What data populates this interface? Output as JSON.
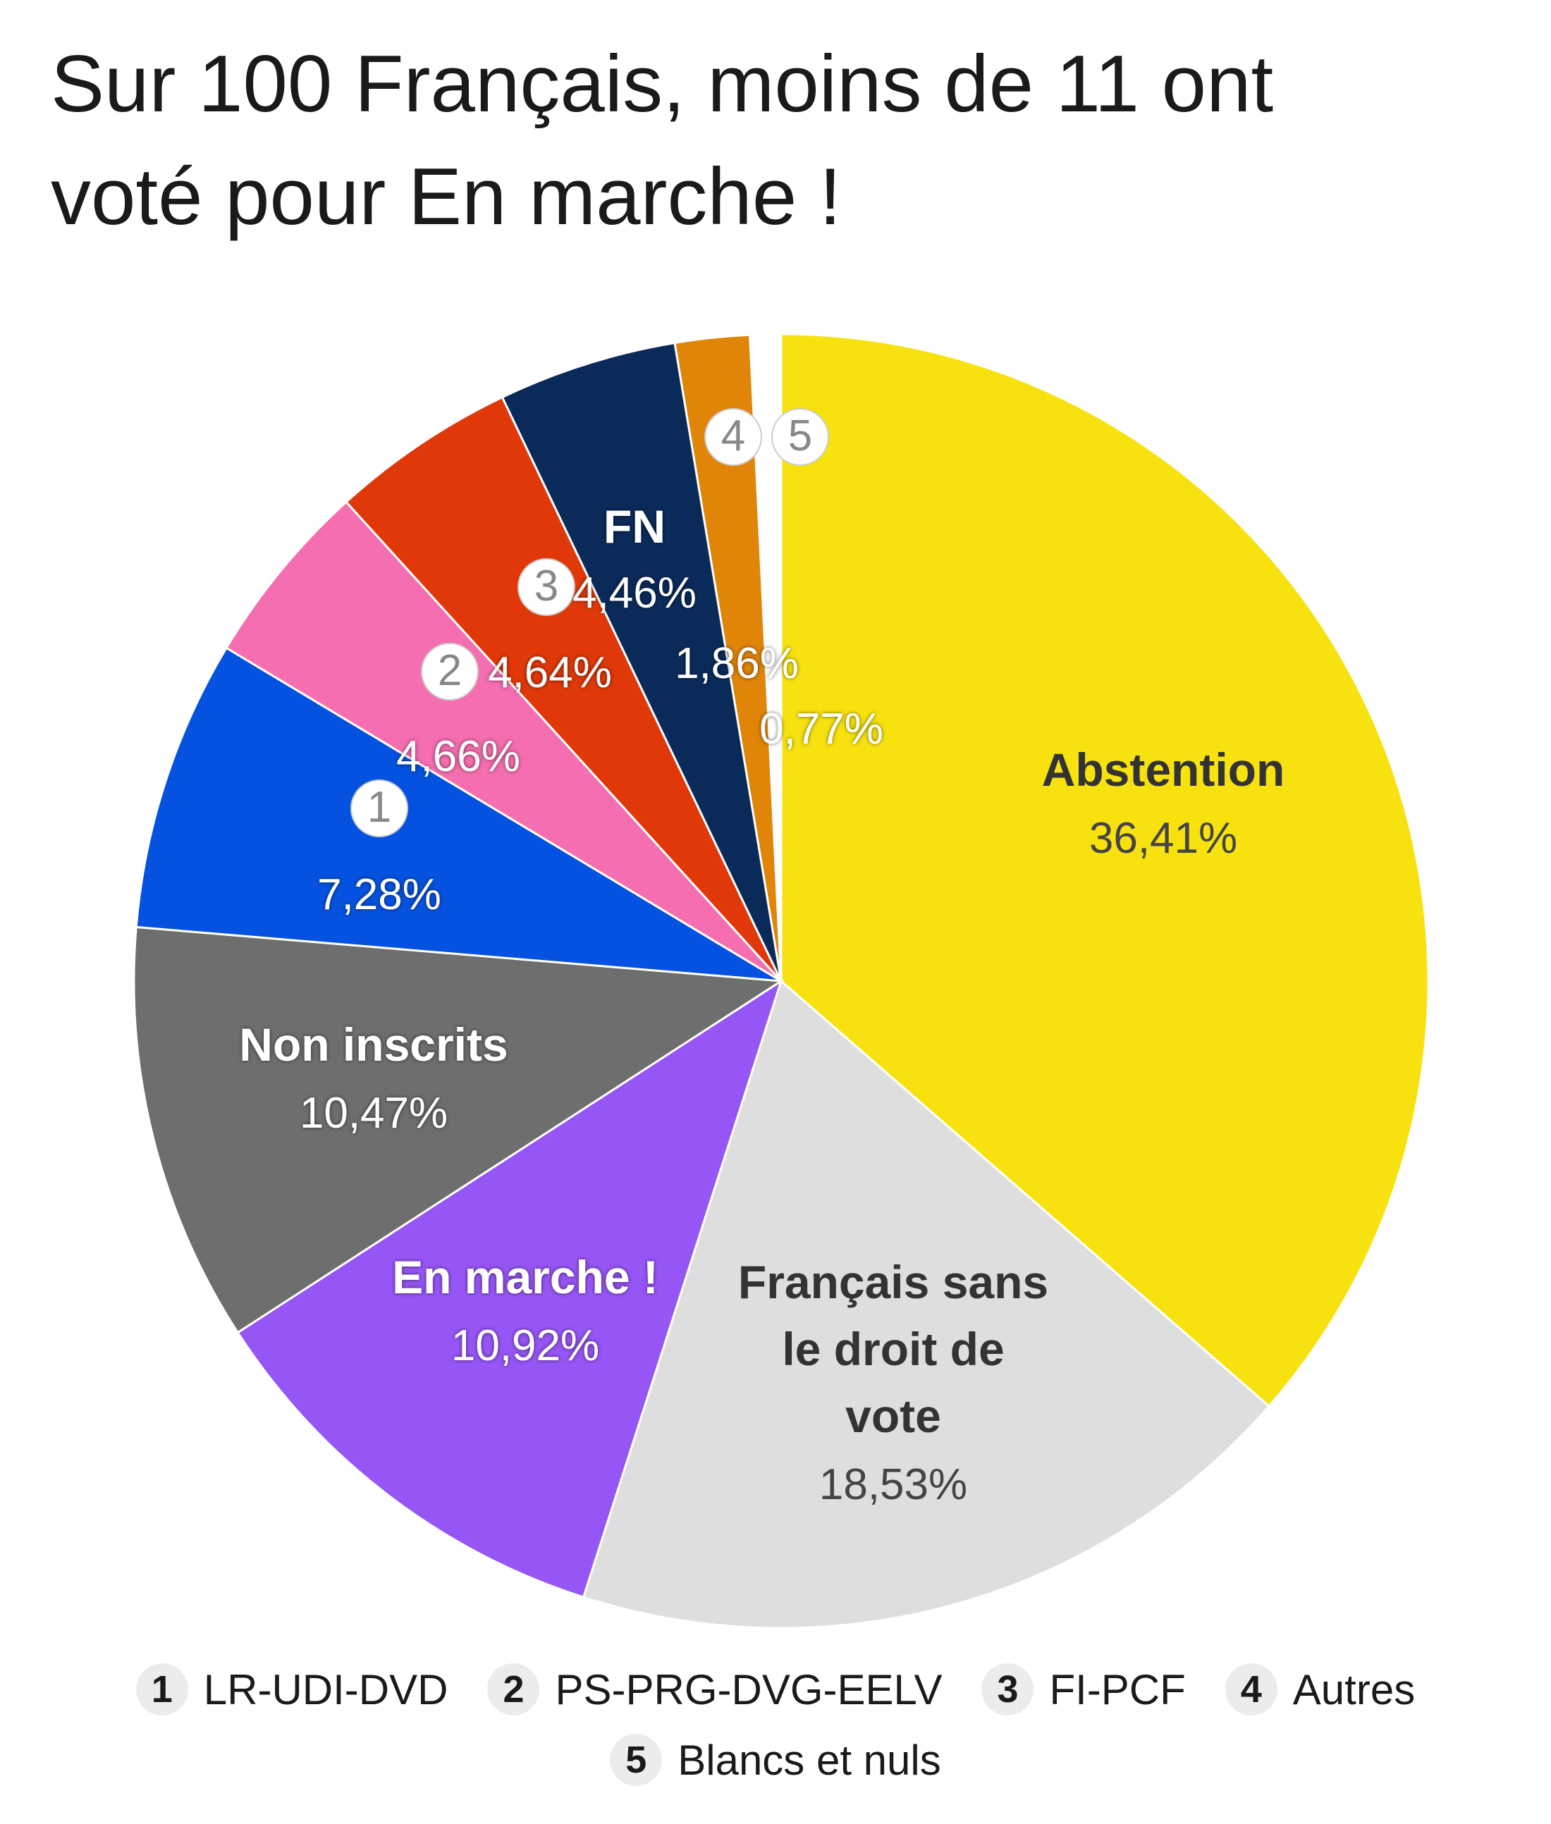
{
  "title": {
    "line1": "Sur 100 Français, moins de 11 ont",
    "line2": "voté pour En marche !"
  },
  "chart_data": {
    "type": "pie",
    "title": "Sur 100 Français, moins de 11 ont voté pour En marche !",
    "start": "top, clockwise",
    "slices": [
      {
        "name": "Abstention",
        "label": "Abstention",
        "value": 36.41,
        "value_label": "36,41%",
        "color": "#f7e210",
        "text_color": "#333333"
      },
      {
        "name": "Français sans le droit de vote",
        "label_lines": [
          "Français sans",
          "le droit de",
          "vote"
        ],
        "value": 18.53,
        "value_label": "18,53%",
        "color": "#dedede",
        "text_color": "#333333"
      },
      {
        "name": "En marche !",
        "label": "En marche !",
        "value": 10.92,
        "value_label": "10,92%",
        "color": "#9655f5",
        "text_color": "#ffffff"
      },
      {
        "name": "Non inscrits",
        "label": "Non inscrits",
        "value": 10.47,
        "value_label": "10,47%",
        "color": "#6e6e6e",
        "text_color": "#ffffff"
      },
      {
        "name": "LR-UDI-DVD",
        "badge": "1",
        "value": 7.28,
        "value_label": "7,28%",
        "color": "#0552e0",
        "text_color": "#ffffff"
      },
      {
        "name": "PS-PRG-DVG-EELV",
        "badge": "2",
        "value": 4.66,
        "value_label": "4,66%",
        "color": "#f56eb0",
        "text_color": "#ffffff"
      },
      {
        "name": "FI-PCF",
        "badge": "3",
        "value": 4.64,
        "value_label": "4,64%",
        "color": "#e03808",
        "text_color": "#ffffff"
      },
      {
        "name": "FN",
        "label": "FN",
        "value": 4.46,
        "value_label": "4,46%",
        "color": "#0a2a5a",
        "text_color": "#ffffff"
      },
      {
        "name": "Autres",
        "badge": "4",
        "value": 1.86,
        "value_label": "1,86%",
        "color": "#e08508",
        "text_color": "#ffffff"
      },
      {
        "name": "Blancs et nuls",
        "badge": "5",
        "value": 0.77,
        "value_label": "0,77%",
        "color": "#ffffff",
        "text_color": "#ffffff"
      }
    ],
    "legend": [
      {
        "num": "1",
        "text": "LR-UDI-DVD"
      },
      {
        "num": "2",
        "text": "PS-PRG-DVG-EELV"
      },
      {
        "num": "3",
        "text": "FI-PCF"
      },
      {
        "num": "4",
        "text": "Autres"
      },
      {
        "num": "5",
        "text": "Blancs et nuls"
      }
    ],
    "legend_position": "bottom"
  }
}
